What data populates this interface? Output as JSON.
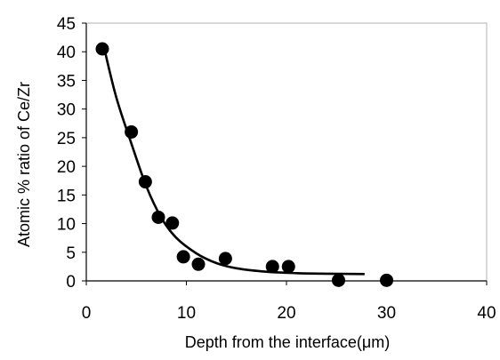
{
  "chart_data": {
    "type": "scatter",
    "title": "",
    "xlabel": "Depth from the interface(μm)",
    "ylabel": "Atomic % ratio of Ce/Zr",
    "xlim": [
      0,
      40
    ],
    "ylim": [
      0,
      45
    ],
    "x_ticks": [
      "0",
      "10",
      "20",
      "30",
      "40"
    ],
    "y_ticks": [
      "0",
      "5",
      "10",
      "15",
      "20",
      "25",
      "30",
      "35",
      "40",
      "45"
    ],
    "grid": false,
    "legend": "none",
    "points": [
      {
        "x": 1.6,
        "y": 40.5
      },
      {
        "x": 4.5,
        "y": 26.0
      },
      {
        "x": 5.9,
        "y": 17.3
      },
      {
        "x": 7.2,
        "y": 11.1
      },
      {
        "x": 8.6,
        "y": 10.1
      },
      {
        "x": 9.7,
        "y": 4.2
      },
      {
        "x": 11.2,
        "y": 2.9
      },
      {
        "x": 13.9,
        "y": 3.9
      },
      {
        "x": 18.6,
        "y": 2.5
      },
      {
        "x": 20.2,
        "y": 2.5
      },
      {
        "x": 25.2,
        "y": 0.1
      },
      {
        "x": 30.0,
        "y": 0.1
      }
    ],
    "fit_curve": [
      {
        "x": 1.8,
        "y": 40.5
      },
      {
        "x": 3,
        "y": 32.0
      },
      {
        "x": 4.5,
        "y": 24.0
      },
      {
        "x": 6,
        "y": 16.5
      },
      {
        "x": 7.5,
        "y": 11.0
      },
      {
        "x": 9,
        "y": 7.5
      },
      {
        "x": 11,
        "y": 4.8
      },
      {
        "x": 13,
        "y": 3.1
      },
      {
        "x": 15,
        "y": 2.2
      },
      {
        "x": 18,
        "y": 1.6
      },
      {
        "x": 21,
        "y": 1.35
      },
      {
        "x": 24,
        "y": 1.25
      },
      {
        "x": 27.8,
        "y": 1.2
      }
    ],
    "colors": {
      "marker": "#000000",
      "line": "#000000",
      "axis": "#000000"
    }
  }
}
